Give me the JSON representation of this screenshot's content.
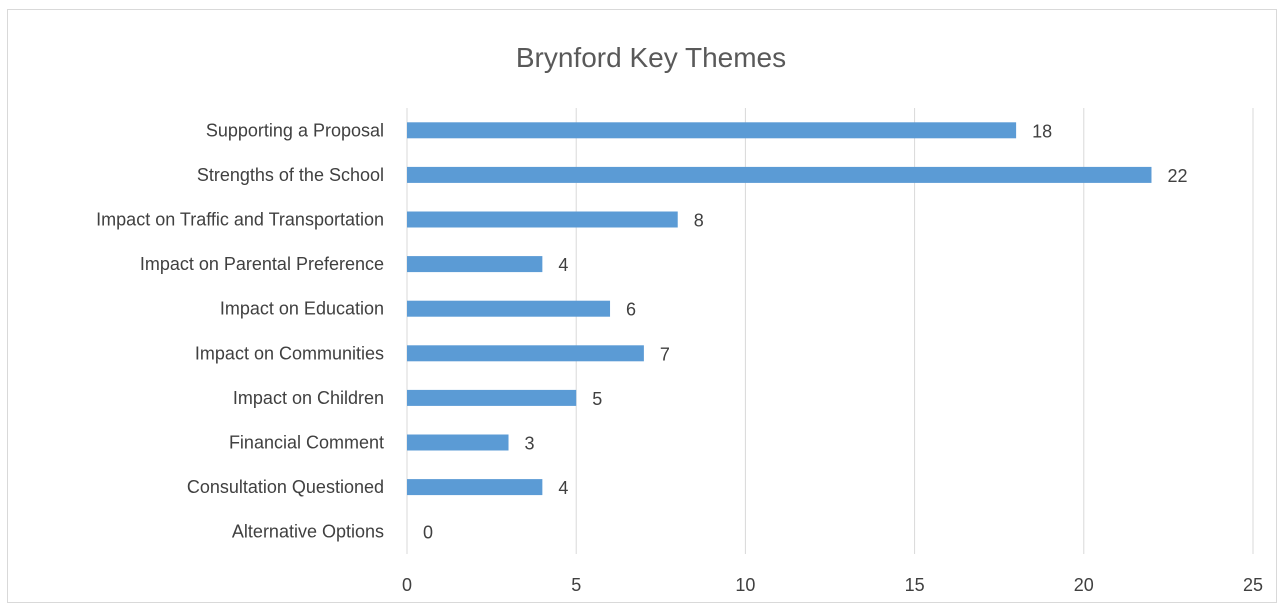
{
  "chart_data": {
    "type": "bar",
    "orientation": "horizontal",
    "title": "Brynford Key Themes",
    "xlabel": "",
    "ylabel": "",
    "categories": [
      "Supporting a Proposal",
      "Strengths of the School",
      "Impact on Traffic and Transportation",
      "Impact on Parental Preference",
      "Impact on Education",
      "Impact on Communities",
      "Impact on Children",
      "Financial Comment",
      "Consultation Questioned",
      "Alternative Options"
    ],
    "values": [
      18,
      22,
      8,
      4,
      6,
      7,
      5,
      3,
      4,
      0
    ],
    "xlim": [
      0,
      25
    ],
    "xticks": [
      0,
      5,
      10,
      15,
      20,
      25
    ],
    "grid": true,
    "legend": "none",
    "data_labels": true,
    "colors": {
      "bar": "#5b9bd5",
      "grid": "#d9d9d9",
      "text": "#404040",
      "title": "#595959"
    }
  }
}
